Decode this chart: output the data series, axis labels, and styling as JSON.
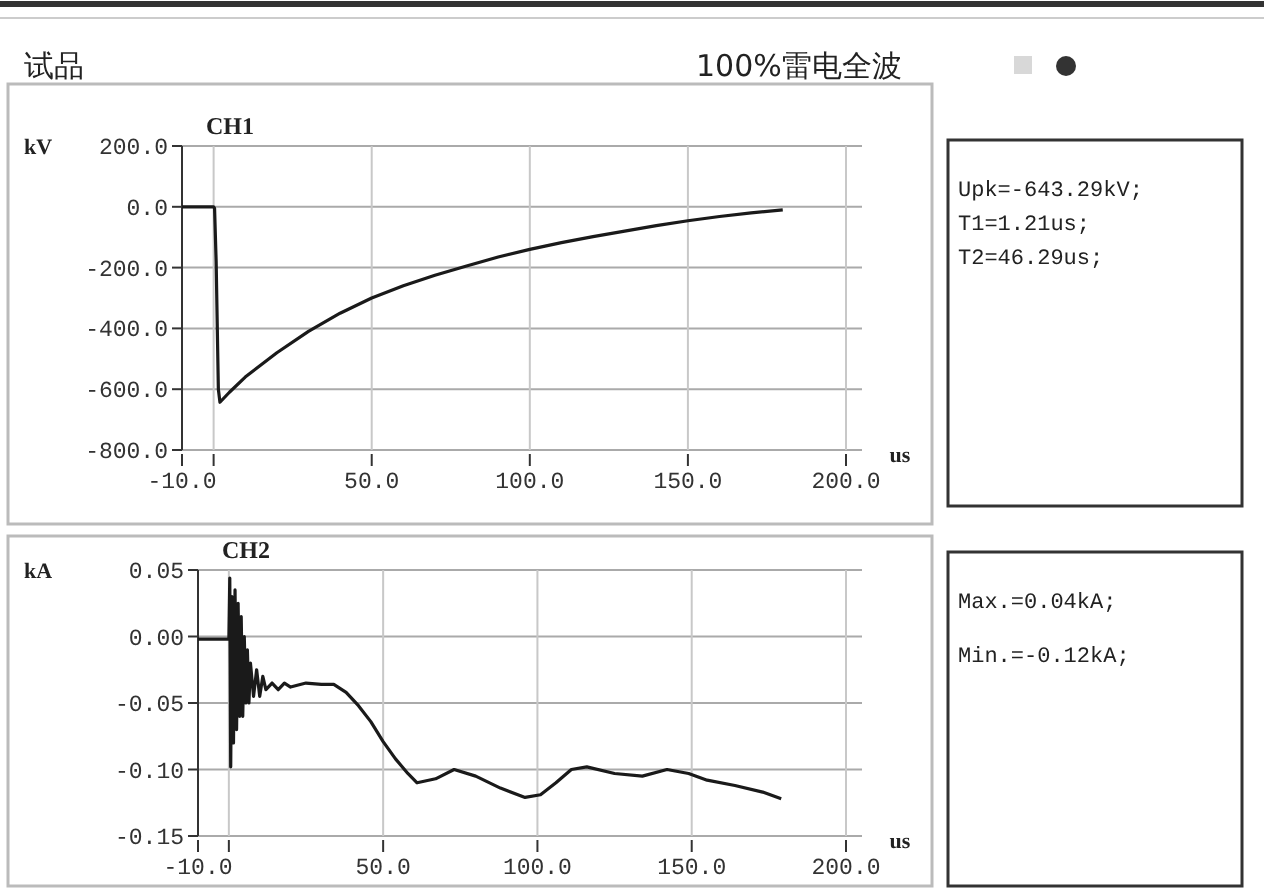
{
  "chart_data": [
    {
      "type": "other",
      "title": "100%雷电全波",
      "annotations": [
        "试品"
      ]
    },
    {
      "type": "line",
      "title": "CH1",
      "ylabel": "kV",
      "xlabel": "us",
      "grid": true,
      "marker": "none",
      "line_style": "solid",
      "xlim": [
        -10,
        200
      ],
      "ylim": [
        -800,
        200
      ],
      "xticks": [
        {
          "value": -10,
          "label": "-10.0"
        },
        {
          "value": 0,
          "label": null
        },
        {
          "value": 50,
          "label": "50.0"
        },
        {
          "value": 100,
          "label": "100.0"
        },
        {
          "value": 150,
          "label": "150.0"
        },
        {
          "value": 200,
          "label": "200.0"
        }
      ],
      "yticks": [
        {
          "value": 200,
          "label": "200.0"
        },
        {
          "value": 0,
          "label": "0.0"
        },
        {
          "value": -200,
          "label": "-200.0"
        },
        {
          "value": -400,
          "label": "-400.0"
        },
        {
          "value": -600,
          "label": "-600.0"
        },
        {
          "value": -800,
          "label": "-800.0"
        }
      ],
      "annotations": [
        "Upk=-643.29kV;",
        "T1=1.21us;",
        "T2=46.29us;"
      ],
      "series": [
        {
          "color": "#1a1a1a",
          "x": [
            -10,
            -5,
            0,
            0.3,
            0.8,
            1.5,
            2,
            5,
            10,
            20,
            30,
            40,
            50,
            60,
            70,
            80,
            90,
            100,
            110,
            120,
            130,
            140,
            150,
            160,
            170,
            180
          ],
          "values": [
            0,
            0,
            0,
            -5,
            -180,
            -600,
            -643,
            -610,
            -560,
            -480,
            -410,
            -350,
            -300,
            -260,
            -225,
            -195,
            -165,
            -140,
            -118,
            -98,
            -80,
            -62,
            -46,
            -32,
            -20,
            -10
          ]
        }
      ]
    },
    {
      "type": "line",
      "title": "CH2",
      "ylabel": "kA",
      "xlabel": "us",
      "grid": true,
      "marker": "none",
      "line_style": "solid",
      "xlim": [
        -10,
        200
      ],
      "ylim": [
        -0.15,
        0.05
      ],
      "xticks": [
        {
          "value": -10,
          "label": "-10.0"
        },
        {
          "value": 0,
          "label": null
        },
        {
          "value": 50,
          "label": "50.0"
        },
        {
          "value": 100,
          "label": "100.0"
        },
        {
          "value": 150,
          "label": "150.0"
        },
        {
          "value": 200,
          "label": "200.0"
        }
      ],
      "yticks": [
        {
          "value": 0.05,
          "label": "0.05"
        },
        {
          "value": 0,
          "label": "0.00"
        },
        {
          "value": -0.05,
          "label": "-0.05"
        },
        {
          "value": -0.1,
          "label": "-0.10"
        },
        {
          "value": -0.15,
          "label": "-0.15"
        }
      ],
      "annotations": [
        "Max.=0.04kA;",
        "Min.=-0.12kA;"
      ],
      "series": [
        {
          "color": "#1a1a1a",
          "x": [
            -10,
            -5,
            0,
            0.3,
            0.6,
            1,
            1.5,
            2,
            2.5,
            3,
            3.5,
            4,
            4.5,
            5,
            5.5,
            6,
            6.5,
            7,
            8,
            9,
            10,
            11,
            12,
            14,
            16,
            18,
            20,
            25,
            30,
            34,
            38,
            42,
            46,
            50,
            54,
            58,
            61,
            67,
            73,
            80,
            88,
            96,
            101,
            106,
            111,
            116,
            125,
            134,
            142,
            149,
            155,
            164,
            173,
            179
          ],
          "values": [
            -0.002,
            -0.002,
            -0.002,
            0.044,
            -0.098,
            0.03,
            -0.08,
            0.035,
            -0.07,
            0.025,
            -0.06,
            0.015,
            -0.06,
            0.0,
            -0.05,
            -0.01,
            -0.05,
            -0.02,
            -0.045,
            -0.025,
            -0.045,
            -0.03,
            -0.04,
            -0.035,
            -0.04,
            -0.035,
            -0.038,
            -0.035,
            -0.036,
            -0.036,
            -0.042,
            -0.052,
            -0.064,
            -0.079,
            -0.092,
            -0.103,
            -0.11,
            -0.107,
            -0.1,
            -0.105,
            -0.114,
            -0.121,
            -0.119,
            -0.11,
            -0.1,
            -0.098,
            -0.103,
            -0.105,
            -0.1,
            -0.103,
            -0.108,
            -0.112,
            -0.117,
            -0.122
          ]
        }
      ]
    }
  ]
}
